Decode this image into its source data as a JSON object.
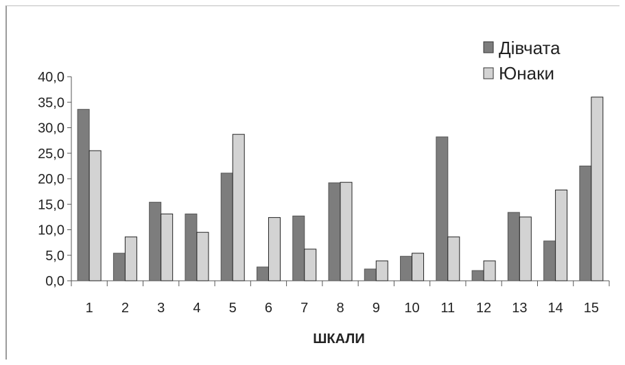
{
  "chart_data": {
    "type": "bar",
    "categories": [
      "1",
      "2",
      "3",
      "4",
      "5",
      "6",
      "7",
      "8",
      "9",
      "10",
      "11",
      "12",
      "13",
      "14",
      "15"
    ],
    "series": [
      {
        "name": "Дівчата",
        "values": [
          33.6,
          5.4,
          15.4,
          13.1,
          21.1,
          2.7,
          12.7,
          19.2,
          2.3,
          4.8,
          28.2,
          2.0,
          13.4,
          7.8,
          22.5
        ],
        "color": "#7d7d7d"
      },
      {
        "name": "Юнаки",
        "values": [
          25.5,
          8.6,
          13.1,
          9.5,
          28.7,
          12.4,
          6.2,
          19.3,
          3.9,
          5.4,
          8.6,
          3.9,
          12.5,
          17.8,
          36.0
        ],
        "color": "#d3d3d3"
      }
    ],
    "yticks": [
      "0,0",
      "5,0",
      "10,0",
      "15,0",
      "20,0",
      "25,0",
      "30,0",
      "35,0",
      "40,0"
    ],
    "xlabel": "ШКАЛИ",
    "ylabel": "",
    "ylim": [
      0,
      40
    ],
    "grid": false,
    "legend_position": "top-right"
  }
}
